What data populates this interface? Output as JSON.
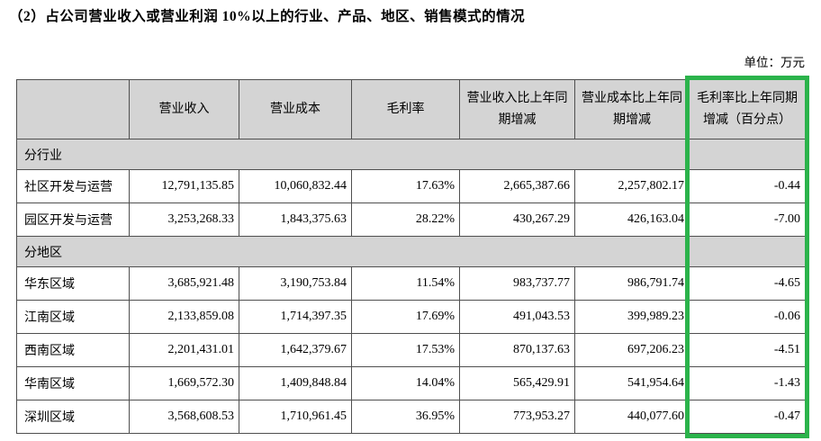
{
  "page": {
    "title": "（2）占公司营业收入或营业利润 10%以上的行业、产品、地区、销售模式的情况",
    "unit_label": "单位：万元"
  },
  "table": {
    "highlight_color": "#2bb34b",
    "headers": [
      "",
      "营业收入",
      "营业成本",
      "毛利率",
      "营业收入比上年同期增减",
      "营业成本比上年同期增减",
      "毛利率比上年同期增减（百分点）"
    ],
    "sections": [
      {
        "label": "分行业",
        "rows": [
          {
            "label": "社区开发与运营",
            "values": [
              "12,791,135.85",
              "10,060,832.44",
              "17.63%",
              "2,665,387.66",
              "2,257,802.17",
              "-0.44"
            ]
          },
          {
            "label": "园区开发与运营",
            "values": [
              "3,253,268.33",
              "1,843,375.63",
              "28.22%",
              "430,267.29",
              "426,163.04",
              "-7.00"
            ]
          }
        ]
      },
      {
        "label": "分地区",
        "rows": [
          {
            "label": "华东区域",
            "values": [
              "3,685,921.48",
              "3,190,753.84",
              "11.54%",
              "983,737.77",
              "986,791.74",
              "-4.65"
            ]
          },
          {
            "label": "江南区域",
            "values": [
              "2,133,859.08",
              "1,714,397.35",
              "17.69%",
              "491,043.53",
              "399,989.23",
              "-0.06"
            ]
          },
          {
            "label": "西南区域",
            "values": [
              "2,201,431.01",
              "1,642,379.67",
              "17.53%",
              "870,137.63",
              "697,206.23",
              "-4.51"
            ]
          },
          {
            "label": "华南区域",
            "values": [
              "1,669,572.30",
              "1,409,848.84",
              "14.04%",
              "565,429.91",
              "541,954.64",
              "-1.43"
            ]
          },
          {
            "label": "深圳区域",
            "values": [
              "3,568,608.53",
              "1,710,961.45",
              "36.95%",
              "773,953.27",
              "440,077.60",
              "-0.47"
            ]
          }
        ]
      }
    ]
  }
}
